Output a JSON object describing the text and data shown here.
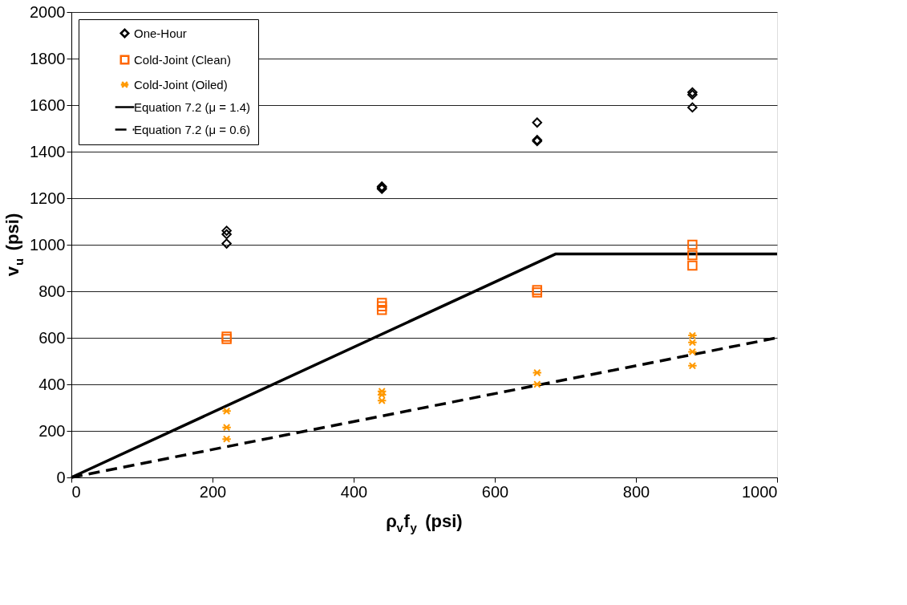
{
  "chart_data": {
    "type": "scatter",
    "xlabel": "ρ$_{v}$f$_{y}$ (psi)",
    "ylabel": "v$_{u}$ (psi)",
    "xlim": [
      0,
      1000
    ],
    "xticks": [
      0,
      200,
      400,
      600,
      800,
      1000
    ],
    "ylim": [
      0,
      2000
    ],
    "yticks": [
      0,
      200,
      400,
      600,
      800,
      1000,
      1200,
      1400,
      1600,
      1800,
      2000
    ],
    "grid": "y",
    "legend": "top left",
    "series": [
      {
        "name": "One-Hour",
        "marker": "diamond",
        "color": "#000000",
        "x": [
          220,
          220,
          220,
          440,
          440,
          440,
          660,
          660,
          660,
          880,
          880,
          880
        ],
        "values": [
          1060,
          1045,
          1005,
          1250,
          1240,
          1245,
          1525,
          1450,
          1445,
          1655,
          1645,
          1590
        ]
      },
      {
        "name": "Cold-Joint (Clean)",
        "marker": "square",
        "color": "#ff6600",
        "x": [
          220,
          220,
          440,
          440,
          440,
          660,
          660,
          880,
          880,
          880
        ],
        "values": [
          605,
          595,
          750,
          735,
          720,
          805,
          795,
          1000,
          955,
          910
        ]
      },
      {
        "name": "Cold-Joint (Oiled)",
        "marker": "cross",
        "color": "#ff9900",
        "x": [
          220,
          220,
          220,
          440,
          440,
          440,
          660,
          660,
          880,
          880,
          880,
          880
        ],
        "values": [
          285,
          215,
          165,
          370,
          355,
          330,
          450,
          400,
          610,
          580,
          540,
          480
        ]
      },
      {
        "name": "Equation 7.2 (μ = 1.4)",
        "type": "line",
        "marker": "none",
        "line_style": "solid",
        "color": "#000000",
        "x": [
          0,
          686,
          1000
        ],
        "values": [
          0,
          960,
          960
        ]
      },
      {
        "name": "Equation 7.2 (μ = 0.6)",
        "type": "line",
        "marker": "none",
        "line_style": "dashed",
        "color": "#000000",
        "x": [
          0,
          1000
        ],
        "values": [
          0,
          600
        ]
      }
    ]
  }
}
